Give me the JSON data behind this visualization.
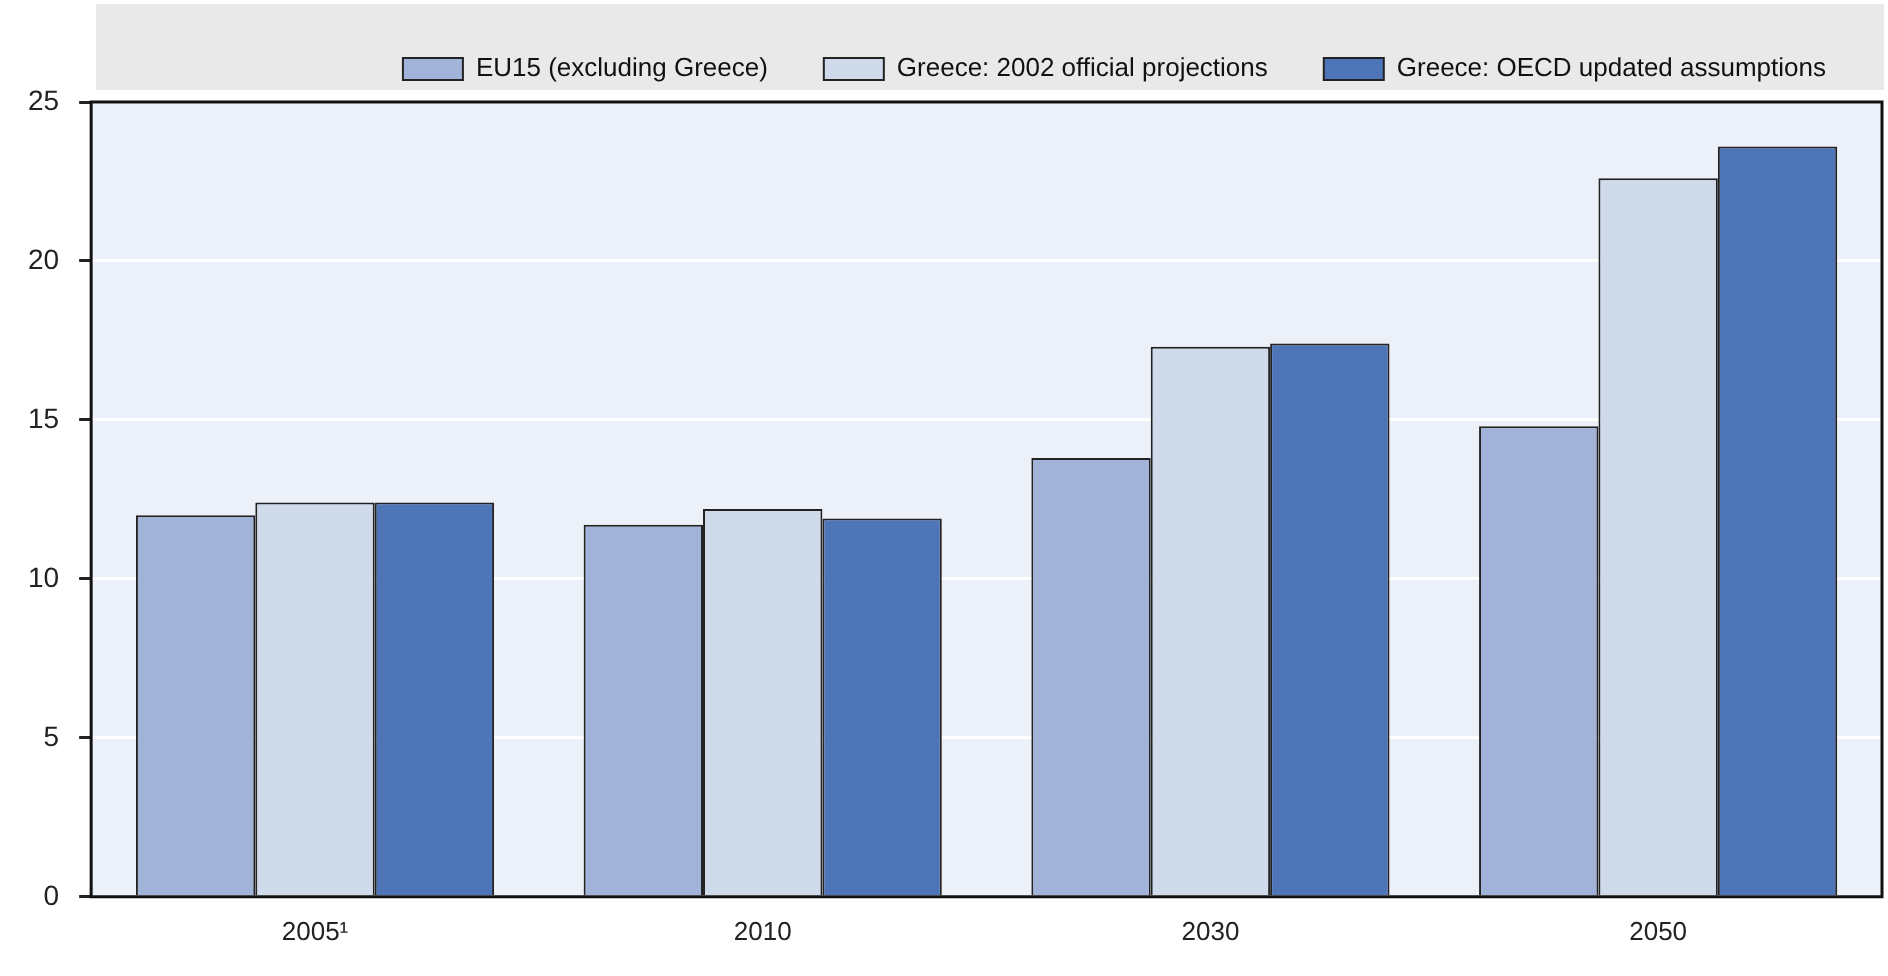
{
  "chart_data": {
    "type": "bar",
    "categories": [
      "2005¹",
      "2010",
      "2030",
      "2050"
    ],
    "series": [
      {
        "name": "EU15 (excluding Greece)",
        "color": "#a1b3d9",
        "values": [
          12.0,
          11.7,
          13.8,
          14.8
        ]
      },
      {
        "name": "Greece: 2002 official projections",
        "color": "#cfdaeb",
        "values": [
          12.4,
          12.2,
          17.3,
          22.6
        ]
      },
      {
        "name": "Greece: OECD updated assumptions",
        "color": "#4f75b9",
        "values": [
          12.4,
          11.9,
          17.4,
          23.6
        ]
      }
    ],
    "ylim": [
      0,
      25
    ],
    "yticks": [
      0,
      5,
      10,
      15,
      20,
      25
    ],
    "grid": "y",
    "legend": "top"
  }
}
